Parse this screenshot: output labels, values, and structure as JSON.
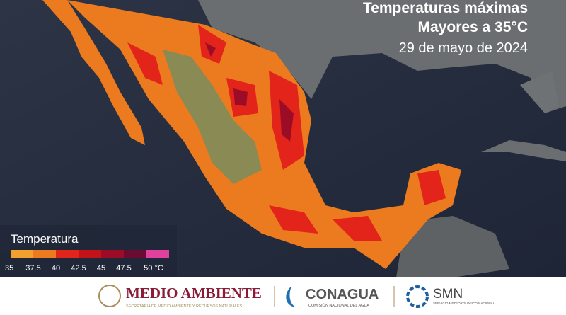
{
  "header": {
    "title_lines": [
      "Temperaturas máximas",
      "Mayores a 35°C"
    ],
    "date": "29 de mayo de 2024"
  },
  "legend": {
    "title": "Temperatura",
    "colors": [
      "#f2a12e",
      "#ec7a1e",
      "#e3241b",
      "#c4121a",
      "#9c0c26",
      "#6a0c32",
      "#e0409e"
    ],
    "labels": [
      "35",
      "37.5",
      "40",
      "42.5",
      "45",
      "47.5",
      "50 °C"
    ]
  },
  "footer": {
    "logos": [
      {
        "name": "MEDIO AMBIENTE",
        "subtitle": "SECRETARÍA DE MEDIO AMBIENTE Y RECURSOS NATURALES"
      },
      {
        "name": "CONAGUA",
        "subtitle": "COMISIÓN NACIONAL DEL AGUA"
      },
      {
        "name": "SMN",
        "subtitle": "SERVICIO METEOROLÓGICO NACIONAL"
      }
    ]
  }
}
